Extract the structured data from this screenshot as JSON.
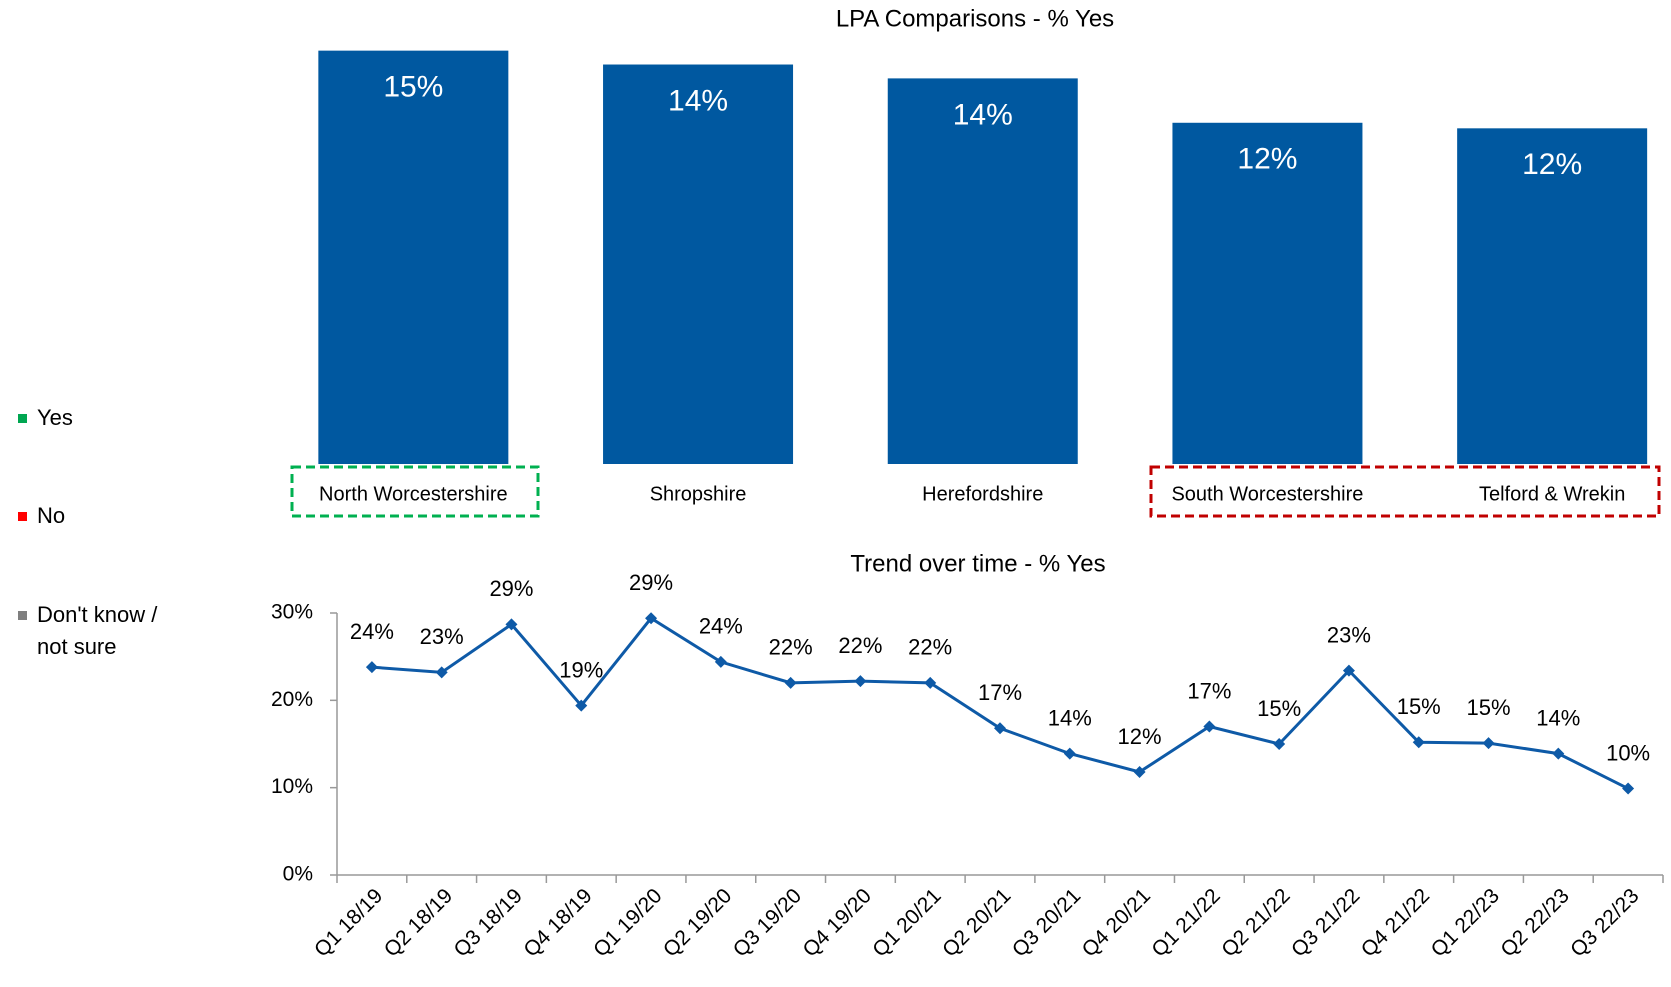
{
  "legend": [
    {
      "name": "Yes",
      "color": "#00a651"
    },
    {
      "name": "No",
      "color": "#ff0000"
    },
    {
      "name": "Don't know / not sure",
      "color": "#7f7f7f"
    }
  ],
  "chart_data": [
    {
      "type": "bar",
      "title": "LPA Comparisons - % Yes",
      "categories": [
        "North Worcestershire",
        "Shropshire",
        "Herefordshire",
        "South Worcestershire",
        "Telford & Wrekin"
      ],
      "values": [
        14.9,
        14.4,
        13.9,
        12.3,
        12.1
      ],
      "value_labels": [
        "15%",
        "14%",
        "14%",
        "12%",
        "12%"
      ],
      "color": "#0058a0",
      "ylim": [
        0,
        15.5
      ]
    },
    {
      "type": "line",
      "title": "Trend over time - % Yes",
      "categories": [
        "Q1 18/19",
        "Q2 18/19",
        "Q3 18/19",
        "Q4 18/19",
        "Q1 19/20",
        "Q2 19/20",
        "Q3 19/20",
        "Q4 19/20",
        "Q1 20/21",
        "Q2 20/21",
        "Q3 20/21",
        "Q4 20/21",
        "Q1 21/22",
        "Q2 21/22",
        "Q3 21/22",
        "Q4 21/22",
        "Q1 22/23",
        "Q2 22/23",
        "Q3 22/23"
      ],
      "values": [
        23.8,
        23.2,
        28.7,
        19.4,
        29.4,
        24.4,
        22.0,
        22.2,
        22.0,
        16.8,
        13.9,
        11.8,
        17.0,
        15.0,
        23.4,
        15.2,
        15.1,
        13.9,
        9.9
      ],
      "value_labels": [
        "24%",
        "23%",
        "29%",
        "19%",
        "29%",
        "24%",
        "22%",
        "22%",
        "22%",
        "17%",
        "14%",
        "12%",
        "17%",
        "15%",
        "23%",
        "15%",
        "15%",
        "14%",
        "10%"
      ],
      "color": "#0e5aa7",
      "ylim": [
        0,
        30
      ],
      "yticks": [
        {
          "value": 0,
          "label": "0%"
        },
        {
          "value": 10,
          "label": "10%"
        },
        {
          "value": 20,
          "label": "20%"
        },
        {
          "value": 30,
          "label": "30%"
        }
      ]
    }
  ]
}
